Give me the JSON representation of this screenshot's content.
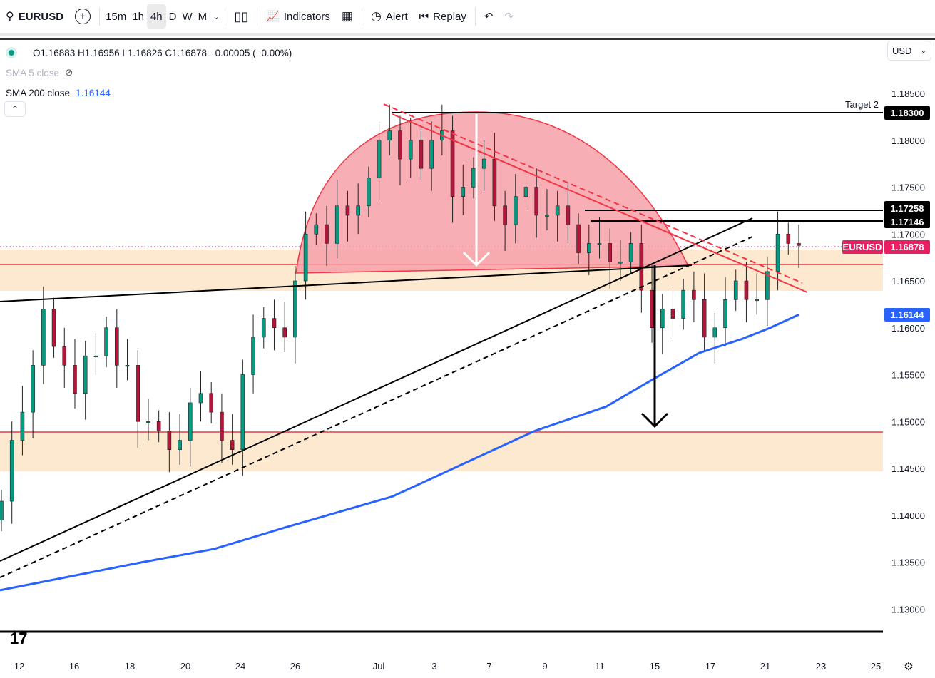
{
  "toolbar": {
    "symbol": "EURUSD",
    "intervals": [
      "15m",
      "1h",
      "4h",
      "D",
      "W",
      "M"
    ],
    "active_interval": "4h",
    "indicators_label": "Indicators",
    "alert_label": "Alert",
    "replay_label": "Replay"
  },
  "legend": {
    "ohlc": "O1.16883 H1.16956 L1.16826 C1.16878 −0.00005 (−0.00%)",
    "sma5": "SMA 5 close",
    "sma200_label": "SMA 200 close",
    "sma200_value": "1.16144"
  },
  "currency": "USD",
  "colors": {
    "up": "#089981",
    "down": "#b2163a",
    "sma200": "#2962ff",
    "zone": "#fde9cf",
    "red": "#f23645",
    "dome": "#f7a0a8",
    "price_tag": "#e91e63"
  },
  "chart_data": {
    "type": "candlestick",
    "title": "EURUSD 4h",
    "ylim": [
      1.1265,
      1.1875
    ],
    "y_ticks": [
      "1.18500",
      "1.18000",
      "1.17500",
      "1.17000",
      "1.16500",
      "1.16000",
      "1.15500",
      "1.15000",
      "1.14500",
      "1.14000",
      "1.13500",
      "1.13000"
    ],
    "x_ticks": [
      "12",
      "16",
      "18",
      "20",
      "24",
      "26",
      "Jul",
      "3",
      "7",
      "9",
      "11",
      "15",
      "17",
      "21",
      "23",
      "25"
    ],
    "closes": [
      1.1415,
      1.148,
      1.151,
      1.156,
      1.162,
      1.158,
      1.156,
      1.153,
      1.157,
      1.157,
      1.16,
      1.156,
      1.156,
      1.15,
      1.15,
      1.149,
      1.147,
      1.148,
      1.152,
      1.153,
      1.151,
      1.148,
      1.147,
      1.155,
      1.159,
      1.161,
      1.16,
      1.159,
      1.165,
      1.17,
      1.171,
      1.169,
      1.173,
      1.172,
      1.173,
      1.176,
      1.18,
      1.181,
      1.178,
      1.18,
      1.177,
      1.18,
      1.181,
      1.174,
      1.175,
      1.177,
      1.178,
      1.173,
      1.171,
      1.174,
      1.175,
      1.172,
      1.172,
      1.173,
      1.171,
      1.168,
      1.169,
      1.169,
      1.167,
      1.167,
      1.169,
      1.164,
      1.16,
      1.162,
      1.161,
      1.164,
      1.163,
      1.159,
      1.16,
      1.163,
      1.165,
      1.163,
      1.163,
      1.166,
      1.17,
      1.169,
      1.16878
    ],
    "sma200": [
      1.132,
      1.1335,
      1.135,
      1.1364,
      1.1387,
      1.142,
      1.1455,
      1.149,
      1.1516,
      1.1547,
      1.1573,
      1.1588,
      1.16,
      1.1614
    ],
    "levels": [
      {
        "label": "Target 2",
        "price": "1.18300"
      },
      {
        "price": "1.17258"
      },
      {
        "price": "1.17146"
      }
    ],
    "current_price": {
      "symbol": "EURUSD",
      "price": "1.16878"
    },
    "sma200_tag": "1.16144"
  }
}
